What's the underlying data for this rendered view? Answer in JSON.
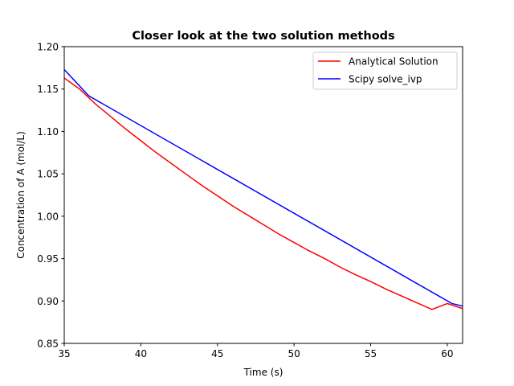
{
  "chart_data": {
    "type": "line",
    "title": "Closer look at the two solution methods",
    "xlabel": "Time (s)",
    "ylabel": "Concentration of A (mol/L)",
    "xlim": [
      35,
      61
    ],
    "ylim": [
      0.85,
      1.2
    ],
    "xticks": [
      35,
      40,
      45,
      50,
      55,
      60
    ],
    "xtick_labels": [
      "35",
      "40",
      "45",
      "50",
      "55",
      "60"
    ],
    "yticks": [
      0.85,
      0.9,
      0.95,
      1.0,
      1.05,
      1.1,
      1.15,
      1.2
    ],
    "ytick_labels": [
      "0.85",
      "0.90",
      "0.95",
      "1.00",
      "1.05",
      "1.10",
      "1.15",
      "1.20"
    ],
    "grid": false,
    "legend_position": "upper-right",
    "series": [
      {
        "name": "Analytical Solution",
        "color": "#ff0000",
        "x": [
          35,
          36,
          37,
          38,
          39,
          40,
          41,
          42,
          43,
          44,
          45,
          46,
          47,
          48,
          49,
          50,
          51,
          52,
          53,
          54,
          55,
          56,
          57,
          58,
          59,
          60,
          61
        ],
        "y": [
          1.163,
          1.15,
          1.133,
          1.118,
          1.103,
          1.089,
          1.075,
          1.062,
          1.049,
          1.036,
          1.024,
          1.012,
          1.001,
          0.99,
          0.979,
          0.969,
          0.959,
          0.95,
          0.94,
          0.931,
          0.923,
          0.914,
          0.906,
          0.898,
          0.89,
          0.897,
          0.891
        ]
      },
      {
        "name": "Scipy solve_ivp",
        "color": "#0000ff",
        "x": [
          35,
          36.6,
          60.3,
          61
        ],
        "y": [
          1.173,
          1.142,
          0.897,
          0.894
        ]
      }
    ]
  }
}
